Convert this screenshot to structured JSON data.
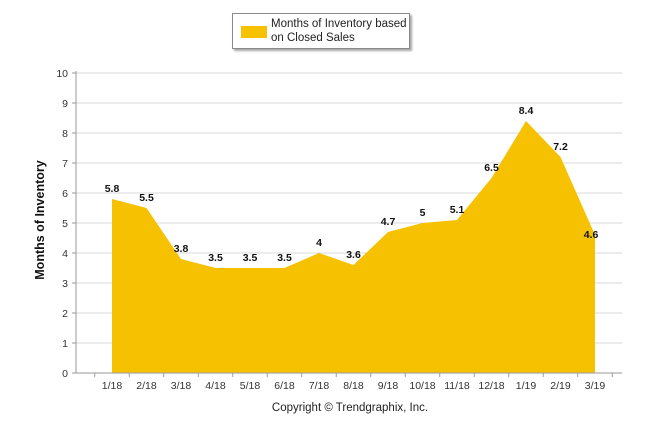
{
  "colors": {
    "series": "#f5c100",
    "grid": "#d9d9d9",
    "axis": "#9a9a9a"
  },
  "copyright": "Copyright © Trendgraphix, Inc.",
  "chart_data": {
    "type": "area",
    "categories": [
      "1/18",
      "2/18",
      "3/18",
      "4/18",
      "5/18",
      "6/18",
      "7/18",
      "8/18",
      "9/18",
      "10/18",
      "11/18",
      "12/18",
      "1/19",
      "2/19",
      "3/19"
    ],
    "series": [
      {
        "name": "Months of Inventory based on Closed Sales",
        "values": [
          5.8,
          5.5,
          3.8,
          3.5,
          3.5,
          3.5,
          4,
          3.6,
          4.7,
          5,
          5.1,
          6.5,
          8.4,
          7.2,
          4.6
        ],
        "labels": [
          "5.8",
          "5.5",
          "3.8",
          "3.5",
          "3.5",
          "3.5",
          "4",
          "3.6",
          "4.7",
          "5",
          "5.1",
          "6.5",
          "8.4",
          "7.2",
          "4.6"
        ]
      }
    ],
    "ylabel": "Months of Inventory",
    "xlabel": "",
    "ylim": [
      0,
      10
    ],
    "yticks": [
      0,
      1,
      2,
      3,
      4,
      5,
      6,
      7,
      8,
      9,
      10
    ],
    "ytick_labels": [
      "0",
      "1",
      "2",
      "3",
      "4",
      "5",
      "6",
      "7",
      "8",
      "9",
      "10"
    ],
    "grid": true,
    "legend": "top-center"
  }
}
